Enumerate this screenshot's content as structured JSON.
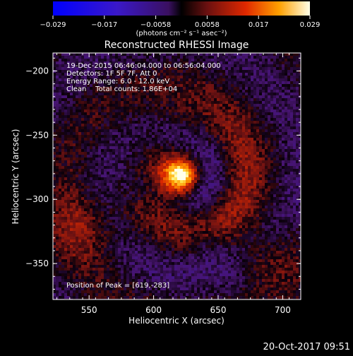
{
  "chart_data": {
    "type": "heatmap",
    "title": "Reconstructed RHESSI Image",
    "xlabel": "Heliocentric X (arcsec)",
    "ylabel": "Heliocentric Y (arcsec)",
    "xlim": [
      522,
      714
    ],
    "ylim": [
      -378,
      -186
    ],
    "x_ticks": [
      550,
      600,
      650,
      700
    ],
    "y_ticks": [
      -200,
      -250,
      -300,
      -350
    ],
    "colorbar": {
      "min": -0.029,
      "max": 0.029,
      "tick_labels": [
        "−0.029",
        "−0.017",
        "−0.0058",
        "0.0058",
        "0.017",
        "0.029"
      ],
      "unit_label": "(photons cm⁻² s⁻¹ asec⁻²)"
    },
    "annotations": [
      "19-Dec-2015 06:46:04.000 to 06:56:04.000",
      "Detectors: 1F 5F 7F, Att 0",
      "Energy Range: 6.0 - 12.0 keV",
      "Clean    Total counts: 1.86E+04"
    ],
    "peak_label": "Position of Peak = [619,-283]",
    "peak": {
      "x": 619,
      "y": -283,
      "value": 0.029
    },
    "grid": false
  },
  "timestamp": "20-Oct-2017 09:51"
}
